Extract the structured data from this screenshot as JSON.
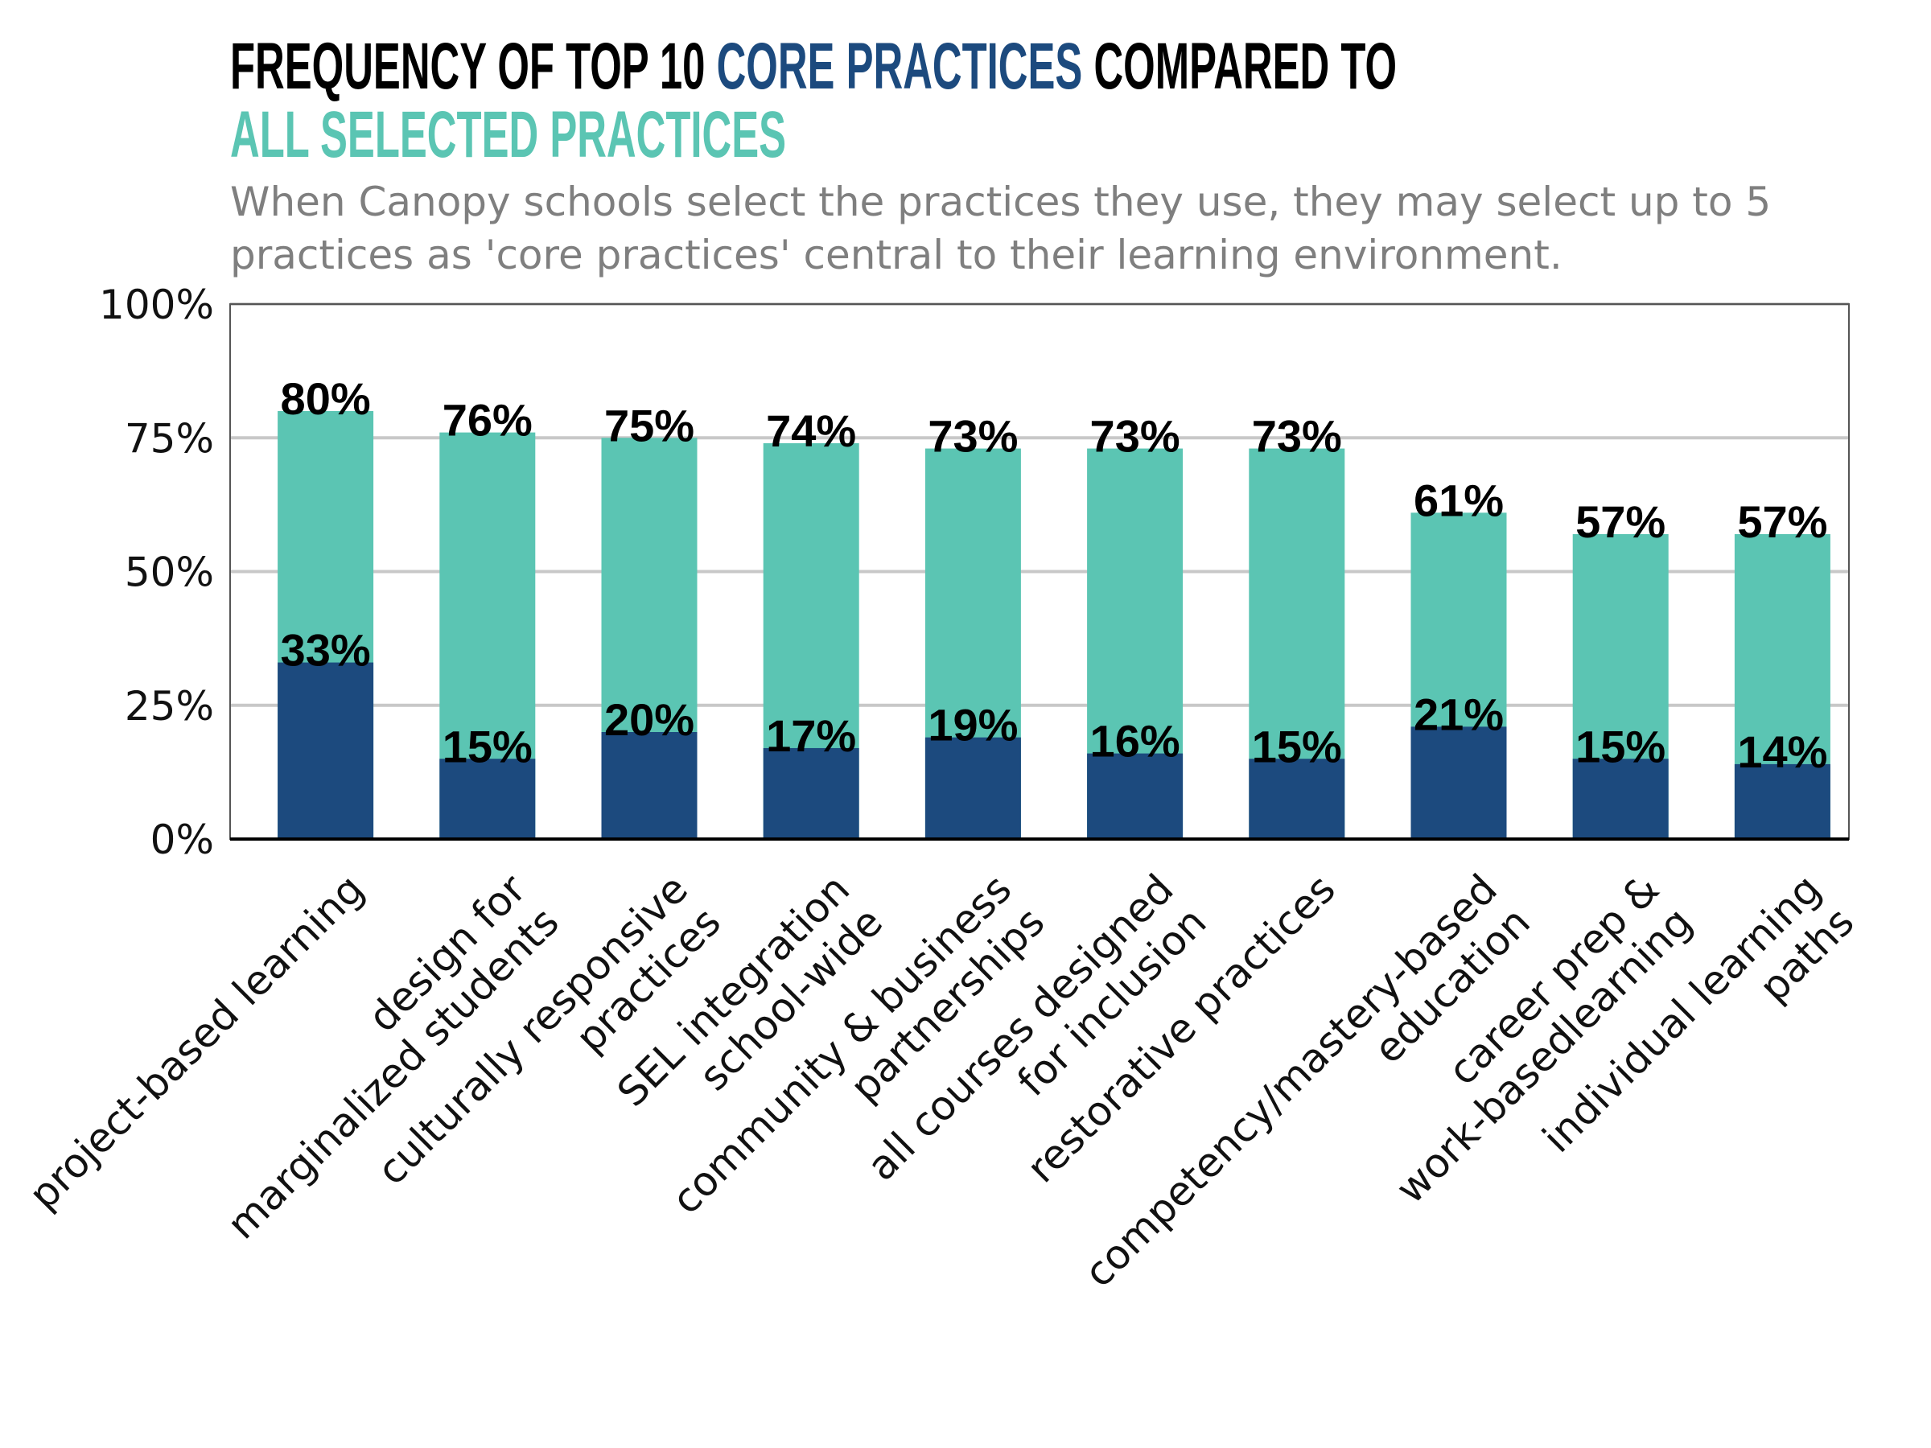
{
  "chart_data": {
    "type": "overlap-bar",
    "title_parts": [
      "FREQUENCY OF TOP 10",
      "COMPARED TO"
    ],
    "subtitle": [
      "When Canopy schools select the practices they use, they may select up to 5",
      "practices as 'core practices' central to their learning environment."
    ],
    "categories": [
      [
        "project-based learning"
      ],
      [
        "design for",
        "marginalized students"
      ],
      [
        "culturally responsive",
        "practices"
      ],
      [
        "SEL integration",
        "school-wide"
      ],
      [
        "community & business",
        "partnerships"
      ],
      [
        "all courses designed",
        "for inclusion"
      ],
      [
        "restorative practices"
      ],
      [
        "competency/mastery-based",
        "education"
      ],
      [
        "career prep &",
        "work-basedlearning"
      ],
      [
        "individual learning",
        "paths"
      ]
    ],
    "series": [
      {
        "name": "ALL SELECTED PRACTICES",
        "color": "#5bc5b3",
        "values": [
          80,
          76,
          75,
          74,
          73,
          73,
          73,
          61,
          57,
          57
        ],
        "value_labels": [
          "80%",
          "76%",
          "75%",
          "74%",
          "73%",
          "73%",
          "73%",
          "61%",
          "57%",
          "57%"
        ]
      },
      {
        "name": "CORE PRACTICES",
        "color": "#1c4a7e",
        "values": [
          33,
          15,
          20,
          17,
          19,
          16,
          15,
          21,
          15,
          14
        ],
        "value_labels": [
          "33%",
          "15%",
          "20%",
          "17%",
          "19%",
          "16%",
          "15%",
          "21%",
          "15%",
          "14%"
        ]
      }
    ],
    "ylim": [
      0,
      100
    ],
    "yticks": [
      {
        "value": 0,
        "label": "0%"
      },
      {
        "value": 25,
        "label": "25%"
      },
      {
        "value": 50,
        "label": "50%"
      },
      {
        "value": 75,
        "label": "75%"
      },
      {
        "value": 100,
        "label": "100%"
      }
    ],
    "grid": true
  }
}
